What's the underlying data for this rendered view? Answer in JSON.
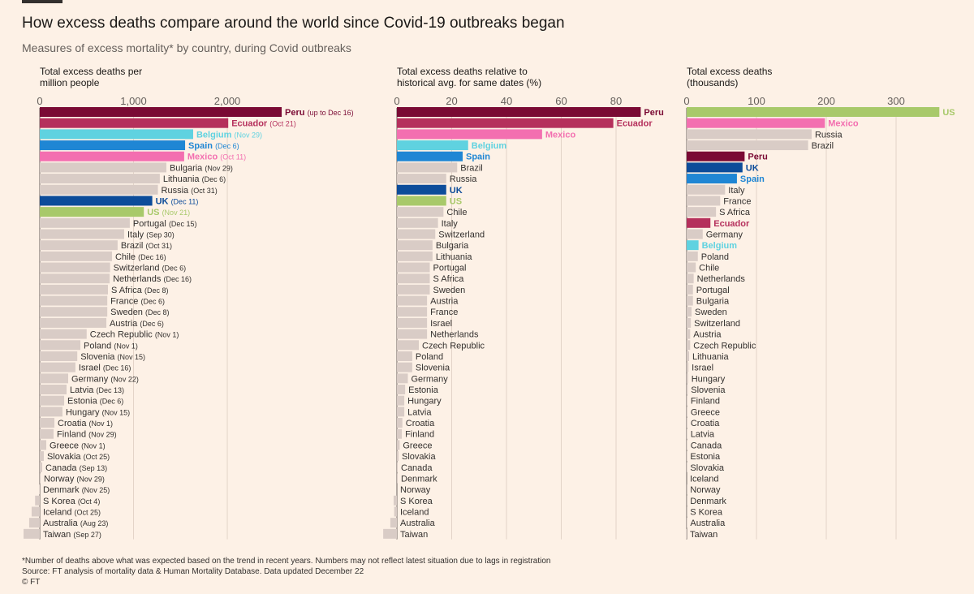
{
  "header": {
    "title": "How excess deaths compare around the world since Covid-19 outbreaks began",
    "subtitle": "Measures of excess mortality* by country, during Covid outbreaks",
    "notes": [
      "*Number of deaths above what was expected based on the trend in recent years. Numbers may not reflect latest situation due to lags in registration",
      "Source: FT analysis of mortality data & Human Mortality Database. Data updated December 22",
      "© FT"
    ]
  },
  "highlight_colors": {
    "Peru": "#7a0a34",
    "Ecuador": "#b5305c",
    "Belgium": "#5fd2e0",
    "Spain": "#1f86d4",
    "Mexico": "#f36fb0",
    "UK": "#0c4c9a",
    "US": "#a8c96a"
  },
  "default_color": "#d9ccc6",
  "chart_data": [
    {
      "type": "bar",
      "title": [
        "Total excess deaths per",
        "million people"
      ],
      "categories": [
        "Peru",
        "Ecuador",
        "Belgium",
        "Spain",
        "Mexico",
        "Bulgaria",
        "Lithuania",
        "Russia",
        "UK",
        "US",
        "Portugal",
        "Italy",
        "Brazil",
        "Chile",
        "Switzerland",
        "Netherlands",
        "S Africa",
        "France",
        "Sweden",
        "Austria",
        "Czech Republic",
        "Poland",
        "Slovenia",
        "Israel",
        "Germany",
        "Latvia",
        "Estonia",
        "Hungary",
        "Croatia",
        "Finland",
        "Greece",
        "Slovakia",
        "Canada",
        "Norway",
        "Denmark",
        "S Korea",
        "Iceland",
        "Australia",
        "Taiwan"
      ],
      "dates": [
        "(up to Dec 16)",
        "(Oct 21)",
        "(Nov 29)",
        "(Dec 6)",
        "(Oct 11)",
        "(Nov 29)",
        "(Dec 6)",
        "(Oct 31)",
        "(Dec 11)",
        "(Nov 21)",
        "(Dec 15)",
        "(Sep 30)",
        "(Oct 31)",
        "(Dec 16)",
        "(Dec 6)",
        "(Dec 16)",
        "(Dec 8)",
        "(Dec 6)",
        "(Dec 8)",
        "(Dec 6)",
        "(Nov 1)",
        "(Nov 1)",
        "(Nov 15)",
        "(Dec 16)",
        "(Nov 22)",
        "(Dec 13)",
        "(Dec 6)",
        "(Nov 15)",
        "(Nov 1)",
        "(Nov 29)",
        "(Nov 1)",
        "(Oct 25)",
        "(Sep 13)",
        "(Nov 29)",
        "(Nov 25)",
        "(Oct 4)",
        "(Oct 25)",
        "(Aug 23)",
        "(Sep 27)"
      ],
      "values": [
        2580,
        2010,
        1636,
        1550,
        1540,
        1350,
        1280,
        1260,
        1200,
        1110,
        960,
        900,
        830,
        770,
        750,
        745,
        727,
        720,
        720,
        710,
        500,
        433,
        400,
        380,
        303,
        286,
        260,
        242,
        156,
        147,
        69,
        43,
        26,
        9,
        -5,
        -50,
        -87,
        -113,
        -173
      ],
      "xlim": [
        -200,
        2700
      ],
      "xticks": [
        0,
        {
          "value": 1000,
          "label": "1,000"
        },
        {
          "value": 2000,
          "label": "2,000"
        }
      ]
    },
    {
      "type": "bar",
      "title": [
        "Total excess deaths relative to",
        "historical avg. for same dates (%)"
      ],
      "categories": [
        "Peru",
        "Ecuador",
        "Mexico",
        "Belgium",
        "Spain",
        "Brazil",
        "Russia",
        "UK",
        "US",
        "Chile",
        "Italy",
        "Switzerland",
        "Bulgaria",
        "Lithuania",
        "Portugal",
        "S Africa",
        "Sweden",
        "Austria",
        "France",
        "Israel",
        "Netherlands",
        "Czech Republic",
        "Poland",
        "Slovenia",
        "Germany",
        "Estonia",
        "Hungary",
        "Latvia",
        "Croatia",
        "Finland",
        "Greece",
        "Slovakia",
        "Canada",
        "Denmark",
        "Norway",
        "S Korea",
        "Iceland",
        "Australia",
        "Taiwan"
      ],
      "values": [
        89,
        79,
        53,
        26,
        24,
        22,
        18,
        18,
        18,
        17,
        15,
        14,
        13,
        13,
        12,
        12,
        12,
        11,
        11,
        11,
        11,
        8,
        5.6,
        5.6,
        4,
        3,
        2.7,
        2.7,
        2,
        1.8,
        1,
        0.6,
        0.3,
        0.3,
        0,
        -1.2,
        -1,
        -2.4,
        -5
      ],
      "xlim": [
        -6,
        92
      ],
      "xticks": [
        0,
        20,
        40,
        60,
        80
      ]
    },
    {
      "type": "bar",
      "title": [
        "Total excess deaths",
        "(thousands)"
      ],
      "categories": [
        "US",
        "Mexico",
        "Russia",
        "Brazil",
        "Peru",
        "UK",
        "Spain",
        "Italy",
        "France",
        "S Africa",
        "Ecuador",
        "Germany",
        "Belgium",
        "Poland",
        "Chile",
        "Netherlands",
        "Portugal",
        "Bulgaria",
        "Sweden",
        "Switzerland",
        "Austria",
        "Czech Republic",
        "Lithuania",
        "Israel",
        "Hungary",
        "Slovenia",
        "Finland",
        "Greece",
        "Croatia",
        "Latvia",
        "Canada",
        "Estonia",
        "Slovakia",
        "Iceland",
        "Norway",
        "Denmark",
        "S Korea",
        "Australia",
        "Taiwan"
      ],
      "values": [
        362,
        198,
        179,
        174,
        83,
        80,
        72,
        55,
        48,
        42,
        34,
        23,
        17,
        16,
        13,
        10,
        9,
        9,
        7,
        6,
        5,
        5,
        3.5,
        2.5,
        2,
        1.5,
        1,
        1,
        1,
        0.8,
        0.8,
        0.5,
        0.5,
        0,
        0.3,
        0.3,
        0.3,
        0.5,
        -0.5
      ],
      "xlim": [
        -5,
        370
      ],
      "xticks": [
        0,
        100,
        200,
        300
      ]
    }
  ]
}
